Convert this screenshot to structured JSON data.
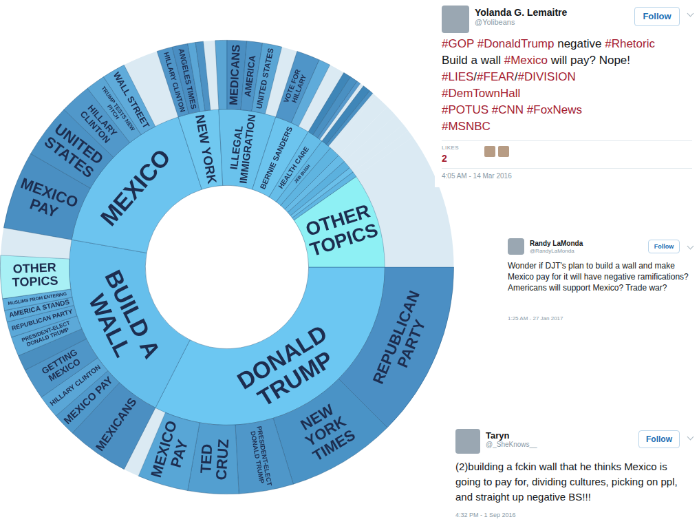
{
  "chart_data": {
    "type": "sunburst",
    "nodes": [
      {
        "label": "DONALD TRUMP",
        "value": 117,
        "color": "#6cc7f2",
        "children": [
          {
            "label": "REPUBLICAN PARTY",
            "value": 45,
            "color": "#4b8fc4"
          },
          {
            "label": "NEW YORK TIMES",
            "value": 28,
            "color": "#4a93c6"
          },
          {
            "label": "PRESIDENT-ELECT DONALD TRUMP",
            "value": 14,
            "color": "#4f97c9"
          },
          {
            "label": "TED CRUZ",
            "value": 13,
            "color": "#539fd0"
          },
          {
            "label": "MEXICO PAY",
            "value": 13,
            "color": "#58a6d6"
          }
        ]
      },
      {
        "label": "BUILD A WALL",
        "value": 73,
        "color": "#66bfec",
        "children": [
          {
            "label": "MEXICANS",
            "value": 16,
            "color": "#4b8fc2"
          },
          {
            "label": "MEXICO PAY",
            "value": 6,
            "color": "#5099cb"
          },
          {
            "label": "HILLARY CLINTON",
            "value": 6,
            "color": "#5aa6d6"
          },
          {
            "label": "GETTING MEXICO",
            "value": 8,
            "color": "#4f96c8"
          },
          {
            "label": null,
            "value": 4,
            "color": "#4a8fc0"
          },
          {
            "label": "PRESIDENT-ELECT DONALD TRUMP",
            "value": 5,
            "color": "#5ca9d8"
          },
          {
            "label": "REPUBLICAN PARTY",
            "value": 4,
            "color": "#5ba8d8"
          },
          {
            "label": "AMERICA STANDS",
            "value": 3,
            "color": "#5faddb"
          },
          {
            "label": "MUSLIMS FROM ENTERING",
            "value": 3,
            "color": "#62b0de"
          },
          {
            "label": "OTHER TOPICS",
            "value": 11,
            "color": "#a8f0f5"
          }
        ]
      },
      {
        "label": "MEXICO",
        "value": 62,
        "color": "#6cc4ef",
        "children": [
          {
            "label": "MEXICO PAY",
            "value": 20,
            "color": "#4a8fc2"
          },
          {
            "label": "UNITED STATES",
            "value": 14,
            "color": "#4b92c5"
          },
          {
            "label": "HILLARY CLINTON",
            "value": 8,
            "color": "#5198ca"
          },
          {
            "label": "TRUMP TESTS NEW PITCH",
            "value": 5,
            "color": "#5aa5d4"
          },
          {
            "label": "WALL STREET",
            "value": 6,
            "color": "#5fabda"
          }
        ]
      },
      {
        "label": "NEW YORK",
        "value": 15,
        "color": "#70c8f0",
        "children": [
          {
            "label": "HILLARY CLINTON",
            "value": 4,
            "color": "#4f95c8"
          },
          {
            "label": "ANGELES TIMES",
            "value": 4,
            "color": "#4a8ec2"
          },
          {
            "label": null,
            "value": 2,
            "color": "#5aa6d6"
          },
          {
            "label": null,
            "value": 2,
            "color": "#4d92c4"
          }
        ]
      },
      {
        "label": "ILLEGAL IMMIGRATION",
        "value": 21,
        "color": "#6ac2ec",
        "children": [
          {
            "label": null,
            "value": 3,
            "color": "#5aa5d4"
          },
          {
            "label": "MEDICANS",
            "value": 5,
            "color": "#4b8fc2"
          },
          {
            "label": "AMERICA",
            "value": 4,
            "color": "#4f95c8"
          },
          {
            "label": "UNITED STATES",
            "value": 5,
            "color": "#5aa5d4"
          }
        ]
      },
      {
        "label": "BERNIE SANDERS",
        "value": 13,
        "color": "#6cc4ee",
        "children": [
          {
            "label": "VOTE FOR HILLARY",
            "value": 6,
            "color": "#4f95c8"
          },
          {
            "label": null,
            "value": 3,
            "color": "#5fabda"
          }
        ]
      },
      {
        "label": "HEALTH CARE",
        "value": 6,
        "color": "#66bde8",
        "children": [
          {
            "label": null,
            "value": 2,
            "color": "#3f86b8"
          },
          {
            "label": null,
            "value": 2,
            "color": "#4a90c2"
          },
          {
            "label": null,
            "value": 1,
            "color": "#5599cc"
          }
        ]
      },
      {
        "label": "JEB BUSH",
        "value": 4,
        "color": "#62b8e4",
        "children": [
          {
            "label": null,
            "value": 2,
            "color": "#3f86b8"
          },
          {
            "label": null,
            "value": 1,
            "color": "#4a90c2"
          }
        ]
      },
      {
        "label": null,
        "value": 4,
        "color": "#5fb4e0",
        "children": []
      },
      {
        "label": null,
        "value": 3,
        "color": "#67bbe6",
        "children": []
      },
      {
        "label": null,
        "value": 3,
        "color": "#5cb1de",
        "children": []
      },
      {
        "label": null,
        "value": 2,
        "color": "#6abfe9",
        "children": []
      },
      {
        "label": null,
        "value": 2,
        "color": "#60b6e2",
        "children": []
      },
      {
        "label": "OTHER TOPICS",
        "value": 35,
        "color": "#8ef0f4",
        "children": []
      }
    ]
  },
  "tweets": [
    {
      "name": "Yolanda G. Lemaitre",
      "handle": "@Yolibeans",
      "follow": "Follow",
      "lines": [
        "#GOP #DonaldTrump negative #Rhetoric",
        "Build a wall #Mexico will pay? Nope!",
        "#LIES/#FEAR/#DIVISION",
        "#DemTownHall",
        "#POTUS  #CNN #FoxNews",
        "#MSNBC"
      ],
      "likes_label": "LIKES",
      "likes": 2,
      "time": "4:05 AM - 14 Mar 2016"
    },
    {
      "name": "Randy LaMonda",
      "handle": "@RandyLaMonda",
      "follow": "Follow",
      "lines": [
        "Wonder if DJT's plan to build a wall and make Mexico pay for it will have negative ramifications? Americans will support Mexico? Trade war?"
      ],
      "time": "1:25 AM - 27 Jan 2017"
    },
    {
      "name": "Taryn",
      "handle": "@_SheKnows__",
      "follow": "Follow",
      "lines": [
        "(2)building a fckin wall that he thinks Mexico is going to pay for, dividing cultures, picking on ppl, and straight up negative BS!!!"
      ],
      "time": "4:32 PM - 1 Sep 2016"
    }
  ]
}
